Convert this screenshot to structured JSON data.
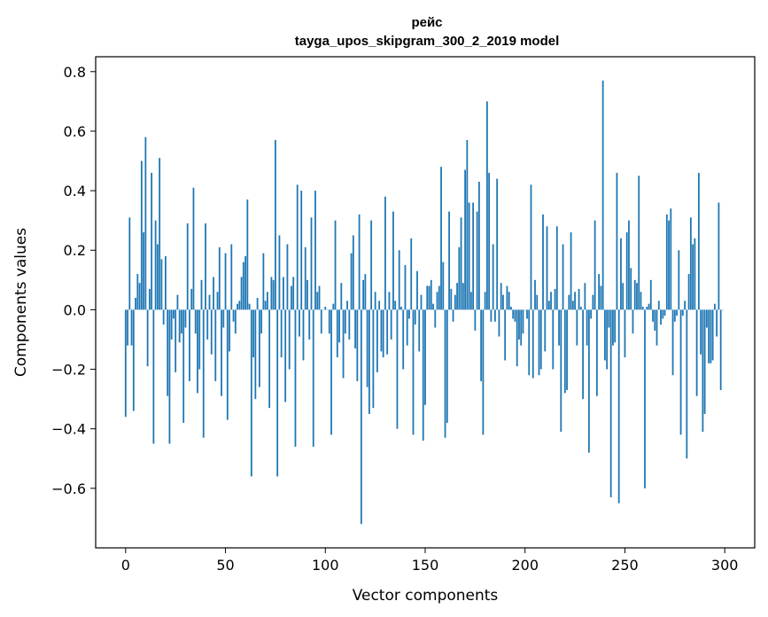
{
  "chart_data": {
    "type": "bar",
    "title": "рейс",
    "subtitle": "tayga_upos_skipgram_300_2_2019 model",
    "xlabel": "Vector components",
    "ylabel": "Components values",
    "xlim": [
      -15,
      315
    ],
    "ylim": [
      -0.8,
      0.85
    ],
    "xticks": [
      0,
      50,
      100,
      150,
      200,
      250,
      300
    ],
    "xtick_labels": [
      "0",
      "50",
      "100",
      "150",
      "200",
      "250",
      "300"
    ],
    "yticks": [
      -0.6,
      -0.4,
      -0.2,
      0.0,
      0.2,
      0.4,
      0.6,
      0.8
    ],
    "ytick_labels": [
      "−0.6",
      "−0.4",
      "−0.2",
      "0.0",
      "0.2",
      "0.4",
      "0.6",
      "0.8"
    ],
    "grid": false,
    "legend": "none",
    "bar_color": "#1f77b4",
    "x": "component index 0–299",
    "values": [
      -0.36,
      -0.12,
      0.31,
      -0.12,
      -0.34,
      0.04,
      0.12,
      0.09,
      0.5,
      0.26,
      0.58,
      -0.19,
      0.07,
      0.46,
      -0.45,
      0.3,
      0.22,
      0.51,
      0.17,
      -0.05,
      0.18,
      -0.29,
      -0.45,
      -0.1,
      -0.03,
      -0.21,
      0.05,
      -0.11,
      -0.08,
      -0.38,
      -0.06,
      0.29,
      -0.24,
      0.07,
      0.41,
      -0.08,
      -0.28,
      -0.2,
      0.1,
      -0.43,
      0.29,
      -0.1,
      0.05,
      -0.15,
      0.11,
      -0.24,
      0.06,
      0.21,
      -0.29,
      -0.06,
      0.19,
      -0.37,
      -0.14,
      0.22,
      -0.04,
      -0.08,
      0.02,
      0.03,
      0.11,
      0.16,
      0.18,
      0.37,
      0.02,
      -0.56,
      -0.16,
      -0.3,
      0.04,
      -0.26,
      -0.08,
      0.19,
      0.03,
      0.06,
      -0.33,
      0.11,
      0.1,
      0.57,
      -0.56,
      0.25,
      -0.16,
      0.11,
      -0.31,
      0.22,
      -0.2,
      0.08,
      0.11,
      -0.46,
      0.42,
      -0.09,
      0.4,
      -0.17,
      0.21,
      0.1,
      -0.1,
      0.31,
      -0.46,
      0.4,
      0.06,
      0.08,
      -0.08,
      0.0,
      0.01,
      0.0,
      -0.08,
      -0.42,
      0.02,
      0.3,
      -0.16,
      -0.11,
      0.09,
      -0.23,
      -0.08,
      0.03,
      -0.1,
      0.19,
      0.25,
      -0.13,
      -0.24,
      0.32,
      -0.72,
      0.1,
      0.12,
      -0.26,
      -0.35,
      0.3,
      -0.33,
      0.06,
      -0.21,
      0.03,
      -0.14,
      -0.16,
      0.38,
      -0.15,
      0.06,
      -0.1,
      0.33,
      0.03,
      -0.4,
      0.2,
      0.01,
      -0.2,
      0.15,
      -0.12,
      -0.03,
      0.24,
      -0.42,
      -0.05,
      0.13,
      -0.14,
      0.05,
      -0.44,
      -0.32,
      0.08,
      0.08,
      0.1,
      0.02,
      -0.06,
      0.06,
      0.08,
      0.48,
      0.16,
      -0.43,
      -0.38,
      0.33,
      0.07,
      -0.04,
      0.05,
      0.09,
      0.21,
      0.31,
      0.09,
      0.47,
      0.57,
      0.36,
      0.06,
      0.36,
      -0.07,
      0.33,
      0.43,
      -0.24,
      -0.42,
      0.06,
      0.7,
      0.46,
      -0.04,
      0.22,
      -0.04,
      0.44,
      -0.09,
      0.09,
      0.05,
      -0.17,
      0.08,
      0.06,
      0.01,
      -0.03,
      -0.04,
      -0.19,
      -0.1,
      -0.12,
      -0.08,
      0.0,
      -0.03,
      -0.22,
      0.42,
      -0.23,
      0.1,
      0.05,
      -0.22,
      -0.2,
      0.32,
      -0.14,
      0.28,
      0.03,
      0.06,
      -0.2,
      0.07,
      0.28,
      -0.12,
      -0.41,
      0.22,
      -0.28,
      -0.27,
      0.05,
      0.26,
      0.03,
      0.06,
      -0.12,
      0.07,
      0.01,
      -0.3,
      0.09,
      -0.12,
      -0.48,
      -0.03,
      0.05,
      0.3,
      -0.29,
      0.12,
      0.08,
      0.77,
      -0.17,
      -0.2,
      -0.06,
      -0.63,
      -0.12,
      -0.11,
      0.46,
      -0.65,
      0.24,
      0.09,
      -0.16,
      0.26,
      0.3,
      0.14,
      -0.08,
      0.1,
      0.09,
      0.45,
      0.06,
      0.01,
      -0.6,
      0.01,
      0.02,
      0.1,
      -0.04,
      -0.07,
      -0.12,
      0.03,
      -0.05,
      -0.03,
      -0.02,
      0.32,
      0.3,
      0.34,
      -0.22,
      -0.04,
      -0.02,
      0.2,
      -0.42,
      -0.02,
      0.03,
      -0.5,
      0.12,
      0.31,
      0.22,
      0.24,
      -0.29,
      0.46,
      -0.15,
      -0.41,
      -0.35,
      -0.06,
      -0.18,
      -0.18,
      -0.17,
      0.02,
      -0.09,
      0.36,
      -0.27,
      0.0
    ]
  }
}
